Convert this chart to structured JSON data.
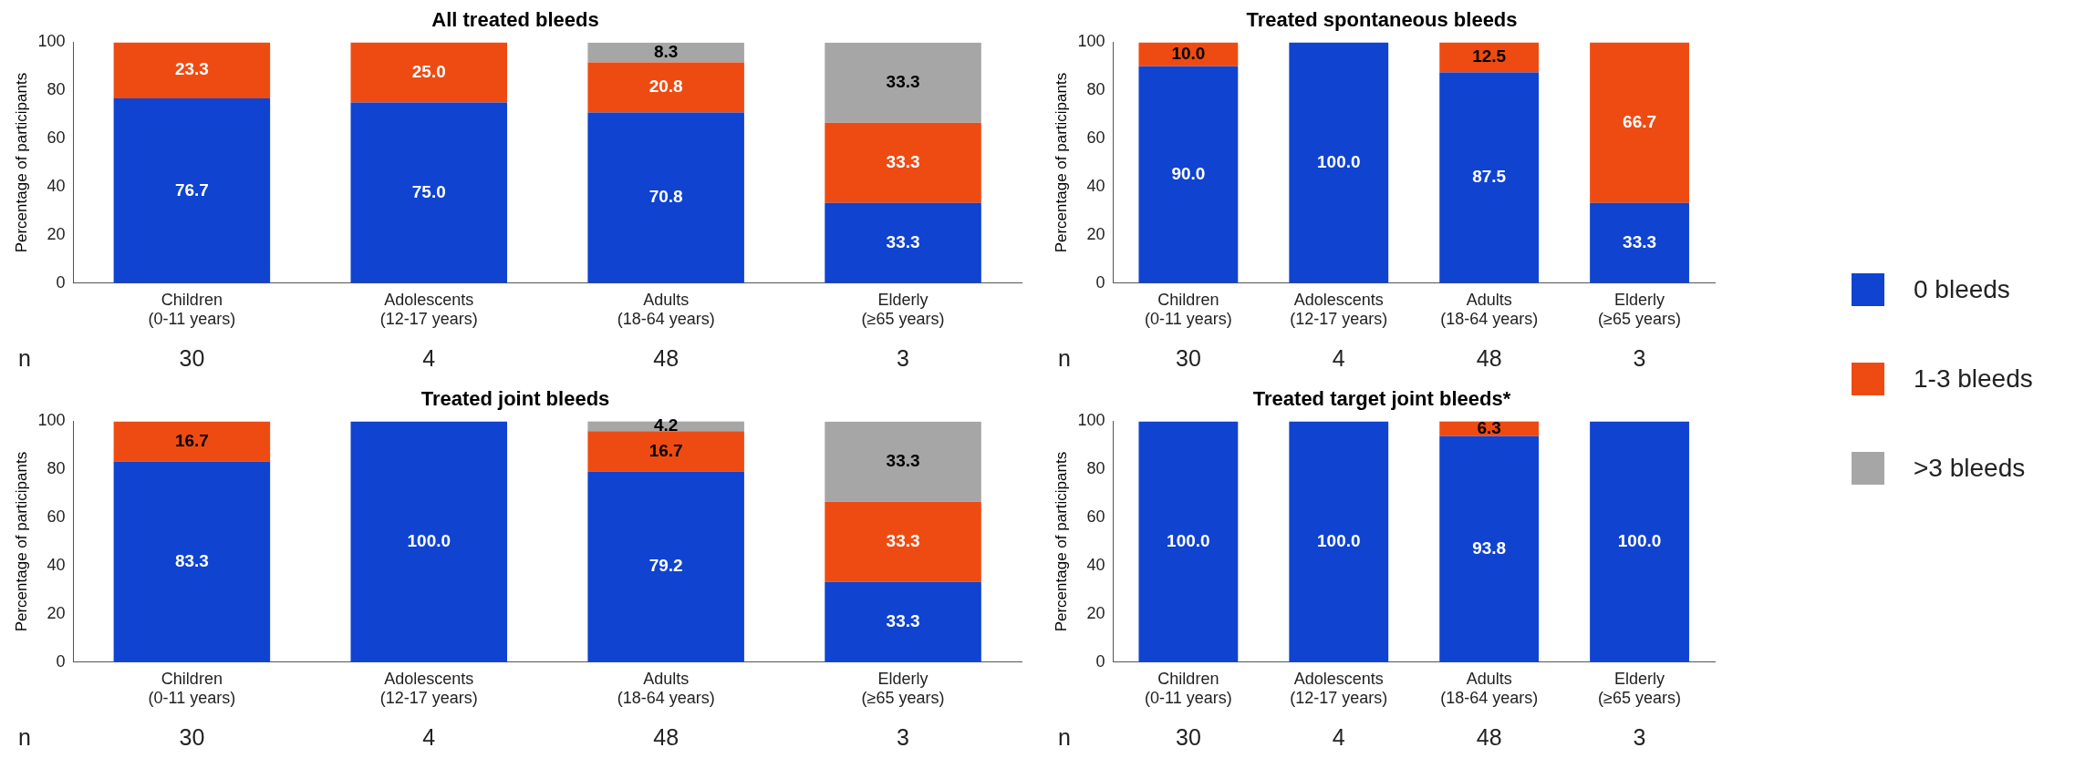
{
  "chart_data": [
    {
      "type": "bar",
      "title": "All treated bleeds",
      "ylabel": "Percentage of participants",
      "categories": [
        "Children\n(0-11 years)",
        "Adolescents\n(12-17 years)",
        "Adults\n(18-64 years)",
        "Elderly\n(≥65 years)"
      ],
      "stacked": true,
      "ylim": [
        0,
        100
      ],
      "yticks": [
        0,
        20,
        40,
        60,
        80,
        100
      ],
      "grid": false,
      "legend": "right",
      "series": [
        {
          "name": "0 bleeds",
          "color": "#0f43d0",
          "values": [
            76.7,
            75.0,
            70.8,
            33.3
          ],
          "value_labels": [
            "76.7",
            "75.0",
            "70.8",
            "33.3"
          ]
        },
        {
          "name": "1-3 bleeds",
          "color": "#ee4b13",
          "values": [
            23.3,
            25.0,
            20.8,
            33.3
          ],
          "value_labels": [
            "23.3",
            "25.0",
            "20.8",
            "33.3"
          ]
        },
        {
          "name": ">3 bleeds",
          "color": "#a6a6a6",
          "values": [
            null,
            null,
            8.3,
            33.3
          ],
          "value_labels": [
            null,
            null,
            "8.3",
            "33.3"
          ]
        }
      ],
      "annotations": [
        "n",
        "30",
        "4",
        "48",
        "3"
      ]
    },
    {
      "type": "bar",
      "title": "Treated spontaneous bleeds",
      "ylabel": "Percentage of participants",
      "categories": [
        "Children\n(0-11 years)",
        "Adolescents\n(12-17 years)",
        "Adults\n(18-64 years)",
        "Elderly\n(≥65 years)"
      ],
      "stacked": true,
      "ylim": [
        0,
        100
      ],
      "yticks": [
        0,
        20,
        40,
        60,
        80,
        100
      ],
      "grid": false,
      "series": [
        {
          "color": "#0f43d0",
          "values": [
            90.0,
            100.0,
            87.5,
            33.3
          ],
          "value_labels": [
            "90.0",
            "100.0",
            "87.5",
            "33.3"
          ]
        },
        {
          "color": "#ee4b13",
          "values": [
            10.0,
            null,
            12.5,
            66.7
          ],
          "value_labels": [
            "10.0",
            null,
            "12.5",
            "66.7"
          ]
        }
      ],
      "annotations": [
        "n",
        "30",
        "4",
        "48",
        "3"
      ]
    },
    {
      "type": "bar",
      "title": "Treated joint bleeds",
      "ylabel": "Percentage of participants",
      "categories": [
        "Children\n(0-11 years)",
        "Adolescents\n(12-17 years)",
        "Adults\n(18-64 years)",
        "Elderly\n(≥65 years)"
      ],
      "stacked": true,
      "ylim": [
        0,
        100
      ],
      "yticks": [
        0,
        20,
        40,
        60,
        80,
        100
      ],
      "grid": false,
      "series": [
        {
          "color": "#0f43d0",
          "values": [
            83.3,
            100.0,
            79.2,
            33.3
          ],
          "value_labels": [
            "83.3",
            "100.0",
            "79.2",
            "33.3"
          ]
        },
        {
          "color": "#ee4b13",
          "values": [
            16.7,
            null,
            16.7,
            33.3
          ],
          "value_labels": [
            "16.7",
            null,
            "16.7",
            "33.3"
          ]
        },
        {
          "color": "#a6a6a6",
          "values": [
            null,
            null,
            4.2,
            33.3
          ],
          "value_labels": [
            null,
            null,
            "4.2",
            "33.3"
          ]
        }
      ],
      "annotations": [
        "n",
        "30",
        "4",
        "48",
        "3"
      ]
    },
    {
      "type": "bar",
      "title": "Treated target joint bleeds*",
      "ylabel": "Percentage of participants",
      "categories": [
        "Children\n(0-11 years)",
        "Adolescents\n(12-17 years)",
        "Adults\n(18-64 years)",
        "Elderly\n(≥65 years)"
      ],
      "stacked": true,
      "ylim": [
        0,
        100
      ],
      "yticks": [
        0,
        20,
        40,
        60,
        80,
        100
      ],
      "grid": false,
      "series": [
        {
          "color": "#0f43d0",
          "values": [
            100.0,
            100.0,
            93.8,
            100.0
          ],
          "value_labels": [
            "100.0",
            "100.0",
            "93.8",
            "100.0"
          ]
        },
        {
          "color": "#ee4b13",
          "values": [
            null,
            null,
            6.3,
            null
          ],
          "value_labels": [
            null,
            null,
            "6.3",
            null
          ]
        }
      ],
      "annotations": [
        "n",
        "30",
        "4",
        "48",
        "3"
      ]
    }
  ]
}
